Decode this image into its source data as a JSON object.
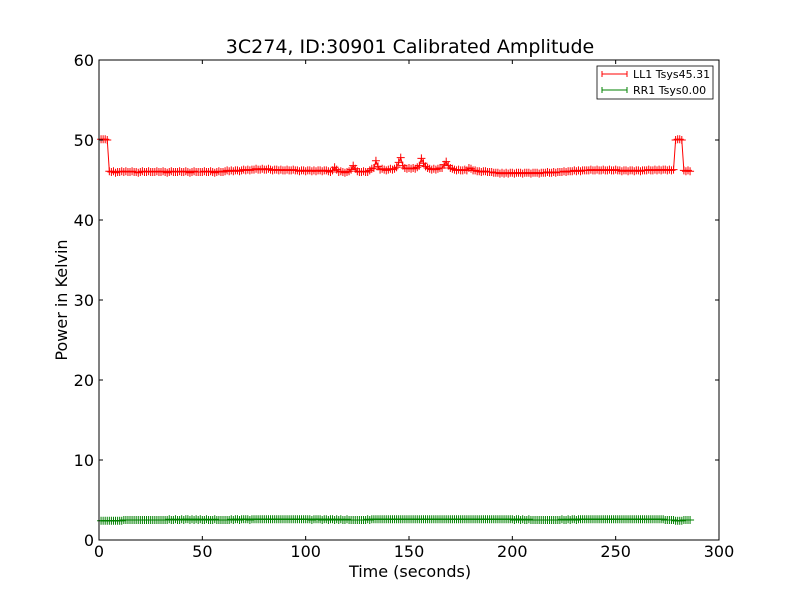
{
  "chart_data": {
    "type": "line",
    "title": "3C274, ID:30901 Calibrated Amplitude",
    "xlabel": "Time (seconds)",
    "ylabel": "Power in Kelvin",
    "xlim": [
      0,
      300
    ],
    "ylim": [
      0,
      60
    ],
    "xticks": [
      0,
      50,
      100,
      150,
      200,
      250,
      300
    ],
    "yticks": [
      0,
      10,
      20,
      30,
      40,
      50,
      60
    ],
    "xtick_labels": [
      "0",
      "50",
      "100",
      "150",
      "200",
      "250",
      "300"
    ],
    "ytick_labels": [
      "0",
      "10",
      "20",
      "30",
      "40",
      "50",
      "60"
    ],
    "grid": false,
    "legend_position": "top-right",
    "sample_interval": 1,
    "series": [
      {
        "name": "LL1 Tsys45.31",
        "color": "#ff0000",
        "marker": "plus",
        "x_start": 1,
        "values": [
          50.1,
          50.1,
          50.1,
          50.0,
          46.1,
          46.0,
          46.1,
          45.9,
          46.0,
          46.0,
          46.1,
          46.0,
          46.1,
          46.0,
          46.0,
          46.1,
          46.0,
          46.0,
          45.9,
          46.0,
          46.1,
          46.0,
          46.0,
          46.1,
          46.0,
          46.0,
          46.0,
          46.1,
          46.0,
          46.0,
          46.1,
          46.0,
          45.9,
          46.0,
          46.1,
          46.0,
          46.0,
          46.0,
          46.1,
          46.0,
          46.0,
          46.1,
          46.0,
          45.9,
          46.0,
          46.1,
          46.0,
          46.0,
          46.0,
          46.0,
          46.1,
          46.0,
          46.0,
          46.1,
          46.0,
          45.9,
          46.0,
          46.1,
          46.0,
          46.0,
          46.1,
          46.2,
          46.1,
          46.2,
          46.1,
          46.2,
          46.2,
          46.1,
          46.2,
          46.3,
          46.2,
          46.3,
          46.2,
          46.3,
          46.3,
          46.4,
          46.3,
          46.3,
          46.4,
          46.3,
          46.3,
          46.4,
          46.3,
          46.2,
          46.3,
          46.3,
          46.2,
          46.3,
          46.2,
          46.2,
          46.3,
          46.2,
          46.2,
          46.3,
          46.2,
          46.2,
          46.1,
          46.2,
          46.2,
          46.1,
          46.2,
          46.2,
          46.1,
          46.2,
          46.1,
          46.2,
          46.2,
          46.1,
          46.2,
          46.2,
          46.1,
          46.0,
          46.2,
          46.6,
          46.3,
          46.0,
          46.1,
          46.0,
          45.9,
          46.0,
          46.1,
          46.3,
          46.8,
          46.4,
          46.1,
          46.0,
          46.0,
          46.1,
          46.0,
          46.0,
          46.2,
          46.4,
          46.5,
          47.4,
          46.7,
          46.3,
          46.4,
          46.3,
          46.2,
          46.3,
          46.4,
          46.3,
          46.4,
          46.6,
          47.2,
          47.8,
          46.8,
          46.5,
          46.4,
          46.5,
          46.4,
          46.5,
          46.4,
          46.6,
          46.8,
          47.7,
          47.1,
          46.7,
          46.5,
          46.4,
          46.3,
          46.4,
          46.3,
          46.4,
          46.5,
          46.5,
          46.9,
          47.3,
          46.8,
          46.5,
          46.4,
          46.3,
          46.2,
          46.3,
          46.2,
          46.2,
          46.3,
          46.2,
          46.5,
          46.4,
          46.2,
          46.2,
          46.1,
          46.1,
          46.0,
          46.1,
          46.1,
          46.0,
          46.0,
          46.0,
          45.9,
          45.9,
          45.9,
          45.8,
          45.9,
          45.8,
          45.9,
          45.8,
          45.9,
          45.9,
          45.8,
          45.9,
          45.9,
          45.9,
          45.8,
          45.9,
          45.9,
          45.9,
          45.8,
          45.9,
          45.9,
          45.9,
          45.8,
          45.9,
          45.9,
          45.9,
          46.0,
          45.9,
          45.9,
          46.0,
          45.9,
          46.0,
          46.0,
          46.0,
          46.1,
          46.0,
          46.1,
          46.1,
          46.1,
          46.2,
          46.1,
          46.2,
          46.1,
          46.2,
          46.2,
          46.2,
          46.2,
          46.3,
          46.2,
          46.2,
          46.3,
          46.2,
          46.2,
          46.3,
          46.2,
          46.2,
          46.3,
          46.2,
          46.2,
          46.3,
          46.2,
          46.2,
          46.1,
          46.2,
          46.2,
          46.1,
          46.2,
          46.2,
          46.1,
          46.2,
          46.2,
          46.1,
          46.2,
          46.2,
          46.2,
          46.3,
          46.2,
          46.2,
          46.3,
          46.2,
          46.3,
          46.2,
          46.3,
          46.3,
          46.2,
          46.3,
          46.2,
          46.3,
          50.0,
          50.1,
          50.1,
          50.0,
          46.2,
          46.1,
          46.2,
          46.1
        ]
      },
      {
        "name": "RR1 Tsys0.00",
        "color": "#008000",
        "marker": "plus",
        "x_start": 1,
        "values": [
          2.4,
          2.4,
          2.4,
          2.4,
          2.4,
          2.4,
          2.4,
          2.4,
          2.4,
          2.4,
          2.4,
          2.5,
          2.5,
          2.5,
          2.5,
          2.5,
          2.5,
          2.5,
          2.5,
          2.5,
          2.5,
          2.5,
          2.5,
          2.5,
          2.5,
          2.5,
          2.5,
          2.5,
          2.5,
          2.5,
          2.5,
          2.5,
          2.5,
          2.6,
          2.5,
          2.5,
          2.6,
          2.5,
          2.5,
          2.6,
          2.5,
          2.6,
          2.6,
          2.5,
          2.6,
          2.5,
          2.6,
          2.5,
          2.6,
          2.5,
          2.5,
          2.6,
          2.5,
          2.5,
          2.5,
          2.6,
          2.5,
          2.5,
          2.5,
          2.5,
          2.5,
          2.5,
          2.5,
          2.6,
          2.5,
          2.6,
          2.6,
          2.5,
          2.6,
          2.6,
          2.6,
          2.6,
          2.5,
          2.6,
          2.6,
          2.6,
          2.6,
          2.6,
          2.6,
          2.6,
          2.6,
          2.6,
          2.6,
          2.6,
          2.6,
          2.6,
          2.6,
          2.6,
          2.6,
          2.6,
          2.6,
          2.6,
          2.6,
          2.6,
          2.6,
          2.6,
          2.6,
          2.6,
          2.6,
          2.6,
          2.6,
          2.6,
          2.5,
          2.6,
          2.6,
          2.6,
          2.6,
          2.5,
          2.6,
          2.6,
          2.5,
          2.6,
          2.6,
          2.5,
          2.6,
          2.5,
          2.6,
          2.5,
          2.5,
          2.6,
          2.5,
          2.5,
          2.5,
          2.5,
          2.5,
          2.5,
          2.5,
          2.5,
          2.5,
          2.6,
          2.5,
          2.6,
          2.6,
          2.6,
          2.6,
          2.6,
          2.6,
          2.6,
          2.6,
          2.6,
          2.6,
          2.6,
          2.6,
          2.6,
          2.6,
          2.6,
          2.6,
          2.6,
          2.6,
          2.6,
          2.6,
          2.6,
          2.6,
          2.6,
          2.6,
          2.6,
          2.6,
          2.6,
          2.6,
          2.6,
          2.6,
          2.6,
          2.6,
          2.6,
          2.6,
          2.6,
          2.6,
          2.6,
          2.6,
          2.6,
          2.6,
          2.6,
          2.6,
          2.6,
          2.6,
          2.6,
          2.6,
          2.6,
          2.6,
          2.6,
          2.6,
          2.6,
          2.6,
          2.6,
          2.6,
          2.6,
          2.6,
          2.6,
          2.6,
          2.6,
          2.6,
          2.6,
          2.6,
          2.6,
          2.6,
          2.6,
          2.6,
          2.6,
          2.6,
          2.6,
          2.5,
          2.6,
          2.6,
          2.5,
          2.6,
          2.5,
          2.5,
          2.6,
          2.5,
          2.5,
          2.5,
          2.5,
          2.5,
          2.5,
          2.5,
          2.5,
          2.5,
          2.5,
          2.5,
          2.5,
          2.5,
          2.5,
          2.5,
          2.6,
          2.5,
          2.5,
          2.6,
          2.5,
          2.6,
          2.6,
          2.5,
          2.6,
          2.6,
          2.6,
          2.6,
          2.6,
          2.6,
          2.6,
          2.6,
          2.6,
          2.6,
          2.6,
          2.6,
          2.6,
          2.6,
          2.6,
          2.6,
          2.6,
          2.6,
          2.6,
          2.6,
          2.6,
          2.6,
          2.6,
          2.6,
          2.6,
          2.6,
          2.6,
          2.6,
          2.6,
          2.6,
          2.6,
          2.6,
          2.6,
          2.6,
          2.6,
          2.6,
          2.6,
          2.6,
          2.6,
          2.6,
          2.6,
          2.6,
          2.5,
          2.5,
          2.5,
          2.5,
          2.5,
          2.4,
          2.4,
          2.4,
          2.4,
          2.5,
          2.5,
          2.5,
          2.5
        ]
      }
    ]
  }
}
